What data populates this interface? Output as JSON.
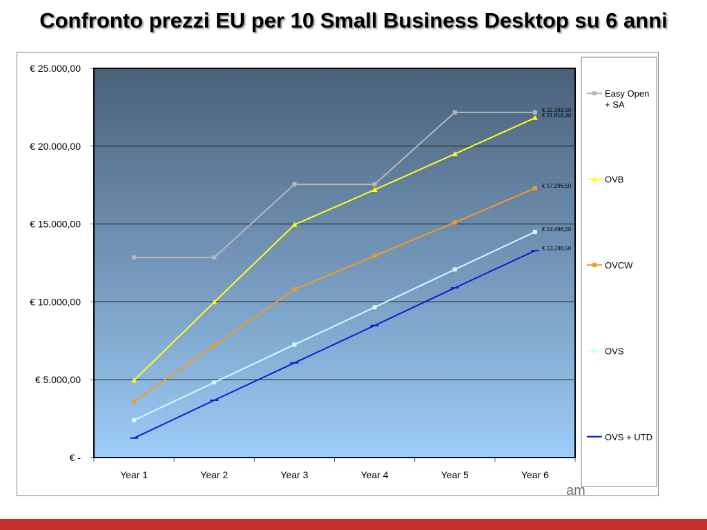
{
  "slide": {
    "title": "Confronto prezzi EU per 10 Small Business Desktop su 6 anni",
    "footer_logo_visible_fragment": "am"
  },
  "colors": {
    "footer_stripe": "#c4302b",
    "plot_top": "#4a6079",
    "plot_bottom": "#9cccf8"
  },
  "chart_data": {
    "type": "line",
    "title": "",
    "xlabel": "",
    "ylabel": "",
    "categories": [
      "Year 1",
      "Year 2",
      "Year 3",
      "Year 4",
      "Year 5",
      "Year 6"
    ],
    "ylim": [
      0,
      25000
    ],
    "yticks": [
      {
        "value": 0,
        "label": "€ -"
      },
      {
        "value": 5000,
        "label": "€ 5.000,00"
      },
      {
        "value": 10000,
        "label": "€ 10.000,00"
      },
      {
        "value": 15000,
        "label": "€ 15.000,00"
      },
      {
        "value": 20000,
        "label": "€ 20.000,00"
      },
      {
        "value": 25000,
        "label": "€ 25.000,00"
      }
    ],
    "grid": true,
    "legend_position": "right",
    "series": [
      {
        "name": "Easy Open + SA",
        "color": "#b8b8b8",
        "marker": "square",
        "values": [
          12850,
          12850,
          17550,
          17550,
          22169.5,
          22169.5
        ],
        "end_label": "€ 22.169,50"
      },
      {
        "name": "OVB",
        "color": "#ffff1a",
        "marker": "triangle",
        "values": [
          4950,
          9980,
          14950,
          17200,
          19500,
          21818.4
        ],
        "end_label": "€ 21.818,40"
      },
      {
        "name": "OVCW",
        "color": "#f59a23",
        "marker": "square",
        "values": [
          3600,
          7200,
          10800,
          12950,
          15100,
          17296.5
        ],
        "end_label": "€ 17.296,50"
      },
      {
        "name": "OVS",
        "color": "#ccffff",
        "marker": "square",
        "values": [
          2400,
          4820,
          7250,
          9650,
          12080,
          14496
        ],
        "end_label": "€ 14.496,00"
      },
      {
        "name": "OVS + UTD",
        "color": "#0a1ed6",
        "marker": "dash",
        "values": [
          1250,
          3680,
          6080,
          8480,
          10900,
          13286.5
        ],
        "end_label": "€ 13.286,50"
      }
    ]
  }
}
